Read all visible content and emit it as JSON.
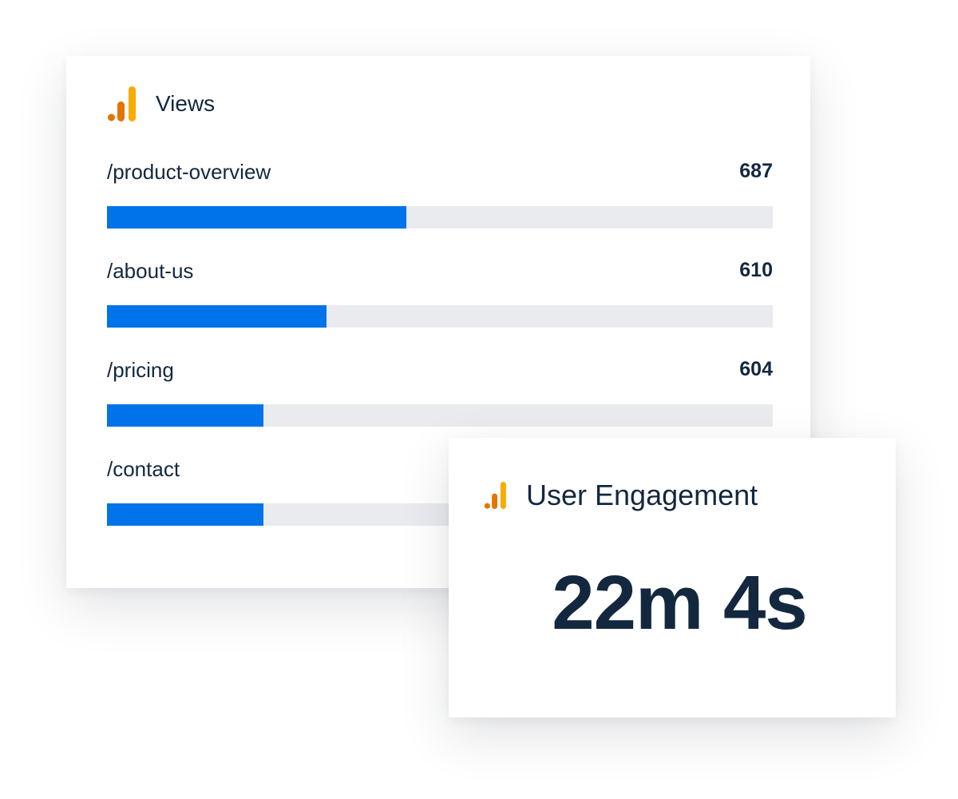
{
  "views_card": {
    "title": "Views",
    "icon": "analytics-bars-icon",
    "rows": [
      {
        "label": "/product-overview",
        "value": "687",
        "bar_fraction": 0.45
      },
      {
        "label": "/about-us",
        "value": "610",
        "bar_fraction": 0.33
      },
      {
        "label": "/pricing",
        "value": "604",
        "bar_fraction": 0.235
      },
      {
        "label": "/contact",
        "value": "",
        "bar_fraction": 0.235
      }
    ]
  },
  "engagement_card": {
    "title": "User Engagement",
    "icon": "analytics-bars-icon",
    "value": "22m 4s"
  },
  "colors": {
    "bar_fill": "#0073ea",
    "bar_track": "#e9ebef",
    "text": "#13283e",
    "icon_orange_dark": "#e37400",
    "icon_orange_light": "#f9ab00"
  }
}
